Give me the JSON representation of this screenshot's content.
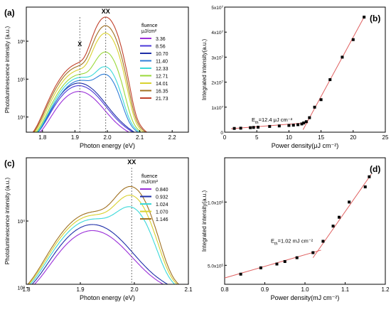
{
  "chart_data": [
    {
      "panel": "(a)",
      "type": "line",
      "xlabel": "Photon energy (eV)",
      "ylabel": "Photoluminescence intensity (a.u.)",
      "xlim": [
        1.75,
        2.25
      ],
      "ylim_log10": [
        3.6,
        6.9
      ],
      "yscale": "log",
      "xticks": [
        "1.8",
        "1.9",
        "2.0",
        "2.1",
        "2.2"
      ],
      "yticks": [
        {
          "label": "10",
          "exp": "4",
          "value": 4
        },
        {
          "label": "10",
          "exp": "5",
          "value": 5
        },
        {
          "label": "10",
          "exp": "6",
          "value": 6
        }
      ],
      "legend_title": "fluence",
      "legend_unit": "μJ/cm²",
      "legend_placement": "top-right",
      "annotations": [
        {
          "text": "X",
          "x": 1.915
        },
        {
          "text": "XX",
          "x": 1.995
        }
      ],
      "series": [
        {
          "name": "3.36",
          "color": "#9b30d9",
          "x_peak": 1.91,
          "peak_log10": 4.62,
          "xx_log10": 0.0
        },
        {
          "name": "8.56",
          "color": "#4b3ad9",
          "x_peak": 1.91,
          "peak_log10": 4.78,
          "xx_log10": 0.0
        },
        {
          "name": "10.70",
          "color": "#1e2fa8",
          "x_peak": 1.91,
          "peak_log10": 4.85,
          "xx_log10": 0.0
        },
        {
          "name": "11.40",
          "color": "#2f7fd9",
          "x_peak": 1.915,
          "peak_log10": 4.92,
          "xx_log10": 0.2
        },
        {
          "name": "12.33",
          "color": "#3ad9d9",
          "x_peak": 1.915,
          "peak_log10": 5.0,
          "xx_log10": 0.5
        },
        {
          "name": "12.71",
          "color": "#9ad93a",
          "x_peak": 1.915,
          "peak_log10": 5.08,
          "xx_log10": 1.2
        },
        {
          "name": "14.01",
          "color": "#d9d230",
          "x_peak": 1.915,
          "peak_log10": 5.2,
          "xx_log10": 2.0
        },
        {
          "name": "16.35",
          "color": "#a07020",
          "x_peak": 1.915,
          "peak_log10": 5.3,
          "xx_log10": 2.2
        },
        {
          "name": "21.73",
          "color": "#c0402a",
          "x_peak": 1.915,
          "peak_log10": 5.38,
          "xx_log10": 2.5
        }
      ]
    },
    {
      "panel": "(b)",
      "type": "scatter",
      "xlabel": "Power density(μJ cm⁻²)",
      "ylabel": "Integrated intensity(a.u.)",
      "xlim": [
        0,
        25
      ],
      "ylim": [
        0,
        50000000
      ],
      "xticks": [
        0,
        5,
        10,
        15,
        20,
        25
      ],
      "yticks": [
        {
          "label": "0",
          "value": 0
        },
        {
          "label": "1x10",
          "exp": "7",
          "value": 10000000
        },
        {
          "label": "2x10",
          "exp": "7",
          "value": 20000000
        },
        {
          "label": "3x10",
          "exp": "7",
          "value": 30000000
        },
        {
          "label": "4x10",
          "exp": "7",
          "value": 40000000
        },
        {
          "label": "5x10",
          "exp": "7",
          "value": 50000000
        }
      ],
      "annotation": {
        "prefix": "E",
        "sub": "th",
        "rest": "=12.4 μJ cm⁻²",
        "x": 4.2,
        "y": 4300000
      },
      "points_x": [
        1.5,
        2.5,
        4.0,
        4.5,
        5.2,
        7.0,
        8.5,
        10.0,
        10.7,
        11.4,
        12.0,
        12.3,
        12.7,
        13.2,
        14.0,
        15.0,
        16.4,
        18.3,
        20.0,
        21.7
      ],
      "points_y": [
        1500000,
        1600000,
        1800000,
        1900000,
        2000000,
        2300000,
        2500000,
        2700000,
        2800000,
        3000000,
        3300000,
        3700000,
        4200000,
        5800000,
        10000000,
        13000000,
        21000000,
        30000000,
        37000000,
        46000000
      ],
      "fit_lines": [
        {
          "x": [
            1.0,
            13.0
          ],
          "y": [
            1400000,
            3800000
          ]
        },
        {
          "x": [
            12.2,
            21.8
          ],
          "y": [
            1000000,
            46500000
          ]
        }
      ],
      "marker_color": "#000000",
      "line_color": "#e06060"
    },
    {
      "panel": "(c)",
      "type": "line",
      "xlabel": "Photon energy (eV)",
      "ylabel": "Photoluminescence intensity (a.u.)",
      "xlim": [
        1.8,
        2.1
      ],
      "ylim_log10": [
        3.05,
        4.95
      ],
      "yscale": "log",
      "xticks": [
        "1.8",
        "1.9",
        "2.0",
        "2.1"
      ],
      "yticks": [
        {
          "label": "10",
          "exp": "3",
          "value": 3
        },
        {
          "label": "10",
          "exp": "4",
          "value": 4
        }
      ],
      "legend_title": "fluence",
      "legend_unit": "mJ/cm²",
      "legend_placement": "top-right",
      "annotations": [
        {
          "text": "XX",
          "x": 1.995
        }
      ],
      "series": [
        {
          "name": "0.840",
          "color": "#9b30d9",
          "x_peak": 1.92,
          "peak_log10": 3.78,
          "xx_log10": 0.0
        },
        {
          "name": "0.932",
          "color": "#1e2fa8",
          "x_peak": 1.92,
          "peak_log10": 3.88,
          "xx_log10": 0.0
        },
        {
          "name": "1.024",
          "color": "#3ad9d9",
          "x_peak": 1.92,
          "peak_log10": 3.96,
          "xx_log10": 0.25
        },
        {
          "name": "1.070",
          "color": "#d9d230",
          "x_peak": 1.92,
          "peak_log10": 4.02,
          "xx_log10": 0.55
        },
        {
          "name": "1.146",
          "color": "#a07020",
          "x_peak": 1.92,
          "peak_log10": 4.07,
          "xx_log10": 0.75
        }
      ]
    },
    {
      "panel": "(d)",
      "type": "scatter",
      "xlabel": "Power density(mJ cm⁻²)",
      "ylabel": "Integrated intensity(a.u.)",
      "xlim": [
        0.8,
        1.2
      ],
      "ylim": [
        350000,
        1350000
      ],
      "xticks": [
        0.8,
        0.9,
        1.0,
        1.1,
        1.2
      ],
      "xtick_labels": [
        "0.8",
        "0.9",
        "1.0",
        "1.1",
        "1.2"
      ],
      "yticks": [
        {
          "label": "5.0x10",
          "exp": "5",
          "value": 500000
        },
        {
          "label": "1.0x10",
          "exp": "6",
          "value": 1000000
        }
      ],
      "annotation": {
        "prefix": "E",
        "sub": "th",
        "rest": "=1.02 mJ cm⁻²",
        "x": 0.915,
        "y": 680000
      },
      "points_x": [
        0.84,
        0.89,
        0.93,
        0.95,
        0.98,
        1.02,
        1.045,
        1.07,
        1.085,
        1.11,
        1.15,
        1.16
      ],
      "points_y": [
        430000,
        480000,
        510000,
        530000,
        560000,
        600000,
        690000,
        810000,
        880000,
        1000000,
        1120000,
        1200000
      ],
      "fit_lines": [
        {
          "x": [
            0.8,
            1.04
          ],
          "y": [
            400000,
            620000
          ]
        },
        {
          "x": [
            1.02,
            1.165
          ],
          "y": [
            560000,
            1220000
          ]
        }
      ],
      "marker_color": "#000000",
      "line_color": "#e06060"
    }
  ]
}
